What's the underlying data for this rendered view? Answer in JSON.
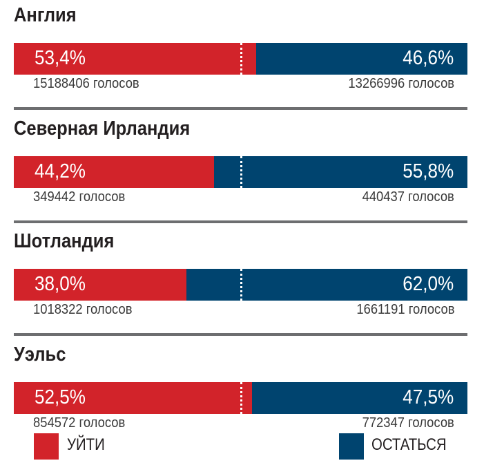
{
  "colors": {
    "leave": "#d2232a",
    "remain": "#00446f"
  },
  "chart_data": {
    "type": "bar",
    "orientation": "horizontal-stacked",
    "categories": [
      "Англия",
      "Северная Ирландия",
      "Шотландия",
      "Уэльс"
    ],
    "series": [
      {
        "name": "УЙТИ",
        "values": [
          53.4,
          44.2,
          38.0,
          52.5
        ],
        "labels": [
          "53,4%",
          "44,2%",
          "38,0%",
          "52,5%"
        ],
        "votes": [
          "15188406 голосов",
          "349442 голосов",
          "1018322 голосов",
          "854572 голосов"
        ]
      },
      {
        "name": "ОСТАТЬСЯ",
        "values": [
          46.6,
          55.8,
          62.0,
          47.5
        ],
        "labels": [
          "46,6%",
          "55,8%",
          "62,0%",
          "47,5%"
        ],
        "votes": [
          "13266996 голосов",
          "440437 голосов",
          "1661191 голосов",
          "772347 голосов"
        ]
      }
    ],
    "xlim": [
      0,
      100
    ],
    "reference_line": 50,
    "legend": [
      "УЙТИ",
      "ОСТАТЬСЯ"
    ],
    "legend_position": "bottom"
  }
}
